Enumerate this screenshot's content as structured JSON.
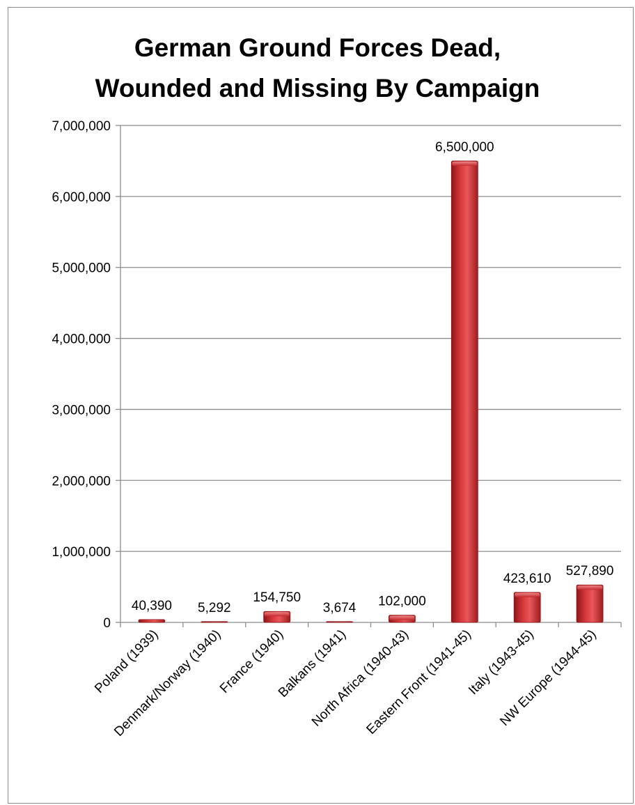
{
  "chart_data": {
    "type": "bar",
    "title_lines": [
      "German Ground Forces Dead,",
      "Wounded and Missing By Campaign"
    ],
    "categories": [
      "Poland (1939)",
      "Denmark/Norway (1940)",
      "France (1940)",
      "Balkans (1941)",
      "North Africa (1940-43)",
      "Eastern Front (1941-45)",
      "Italy (1943-45)",
      "NW Europe (1944-45)"
    ],
    "values": [
      40390,
      5292,
      154750,
      3674,
      102000,
      6500000,
      423610,
      527890
    ],
    "value_labels": [
      "40,390",
      "5,292",
      "154,750",
      "3,674",
      "102,000",
      "6,500,000",
      "423,610",
      "527,890"
    ],
    "ylim": [
      0,
      7000000
    ],
    "yticks": [
      0,
      1000000,
      2000000,
      3000000,
      4000000,
      5000000,
      6000000,
      7000000
    ],
    "ytick_labels": [
      "0",
      "1,000,000",
      "2,000,000",
      "3,000,000",
      "4,000,000",
      "5,000,000",
      "6,000,000",
      "7,000,000"
    ],
    "grid": true,
    "legend": "none",
    "colors": {
      "bar": "#c0282b",
      "bar_light": "#e8575a",
      "bar_dark": "#8e1618",
      "grid": "#8c8c8c"
    }
  }
}
